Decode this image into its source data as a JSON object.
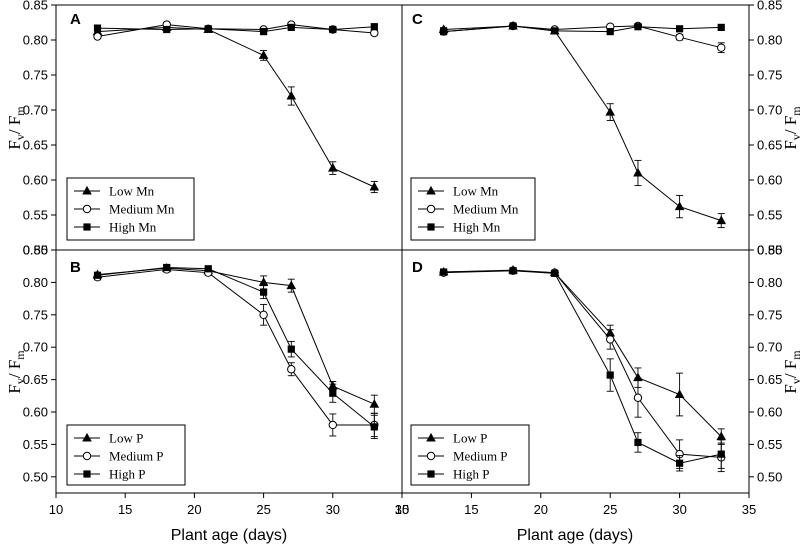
{
  "chart_data": [
    {
      "type": "line",
      "panel": "A",
      "xlabel": "Plant age (days)",
      "ylabel": {
        "main": "F",
        "sub1": "v",
        "mid": "/ F",
        "sub2": "m"
      },
      "xlim": [
        10,
        35
      ],
      "ylim": [
        0.5,
        0.85
      ],
      "x": [
        13,
        18,
        21,
        25,
        27,
        30,
        33
      ],
      "series": [
        {
          "name": "Low Mn",
          "marker": "triangle",
          "values": [
            0.812,
            0.818,
            0.815,
            0.778,
            0.72,
            0.617,
            0.59
          ],
          "err": [
            0.003,
            0.003,
            0.003,
            0.007,
            0.013,
            0.009,
            0.008
          ]
        },
        {
          "name": "Medium Mn",
          "marker": "circle",
          "values": [
            0.805,
            0.822,
            0.816,
            0.815,
            0.822,
            0.815,
            0.81
          ],
          "err": [
            0.003,
            0.003,
            0.003,
            0.003,
            0.003,
            0.003,
            0.003
          ]
        },
        {
          "name": "High Mn",
          "marker": "square",
          "values": [
            0.817,
            0.815,
            0.816,
            0.812,
            0.818,
            0.815,
            0.819
          ],
          "err": [
            0.002,
            0.002,
            0.002,
            0.002,
            0.002,
            0.002,
            0.002
          ]
        }
      ]
    },
    {
      "type": "line",
      "panel": "B",
      "xlabel": "Plant age (days)",
      "ylabel": {
        "main": "F",
        "sub1": "v",
        "mid": "/ F",
        "sub2": "m"
      },
      "xlim": [
        10,
        35
      ],
      "ylim": [
        0.475,
        0.85
      ],
      "x": [
        13,
        18,
        21,
        25,
        27,
        30,
        33
      ],
      "series": [
        {
          "name": "Low P",
          "marker": "triangle",
          "values": [
            0.812,
            0.822,
            0.818,
            0.8,
            0.795,
            0.64,
            0.612
          ],
          "err": [
            0.003,
            0.004,
            0.004,
            0.01,
            0.01,
            0.007,
            0.014
          ]
        },
        {
          "name": "Medium P",
          "marker": "circle",
          "values": [
            0.808,
            0.82,
            0.815,
            0.75,
            0.666,
            0.58,
            0.58
          ],
          "err": [
            0.004,
            0.004,
            0.004,
            0.016,
            0.01,
            0.017,
            0.018
          ]
        },
        {
          "name": "High P",
          "marker": "square",
          "values": [
            0.811,
            0.823,
            0.821,
            0.785,
            0.697,
            0.629,
            0.577
          ],
          "err": [
            0.003,
            0.003,
            0.003,
            0.01,
            0.012,
            0.014,
            0.018
          ]
        }
      ]
    },
    {
      "type": "line",
      "panel": "C",
      "xlabel": "",
      "ylabel": {
        "main": "F",
        "sub1": "v",
        "mid": "/ F",
        "sub2": "m"
      },
      "xlim": [
        10,
        35
      ],
      "ylim": [
        0.5,
        0.85
      ],
      "x": [
        13,
        18,
        21,
        25,
        27,
        30,
        33
      ],
      "series": [
        {
          "name": "Low Mn",
          "marker": "triangle",
          "values": [
            0.815,
            0.82,
            0.813,
            0.697,
            0.61,
            0.562,
            0.542
          ],
          "err": [
            0.003,
            0.003,
            0.003,
            0.012,
            0.018,
            0.016,
            0.01
          ]
        },
        {
          "name": "Medium Mn",
          "marker": "circle",
          "values": [
            0.812,
            0.82,
            0.815,
            0.819,
            0.82,
            0.804,
            0.789
          ],
          "err": [
            0.003,
            0.003,
            0.003,
            0.003,
            0.003,
            0.004,
            0.007
          ]
        },
        {
          "name": "High Mn",
          "marker": "square",
          "values": [
            0.812,
            0.82,
            0.813,
            0.812,
            0.819,
            0.816,
            0.818
          ],
          "err": [
            0.002,
            0.002,
            0.002,
            0.002,
            0.002,
            0.002,
            0.002
          ]
        }
      ]
    },
    {
      "type": "line",
      "panel": "D",
      "xlabel": "Plant age (days)",
      "ylabel": {
        "main": "F",
        "sub1": "v",
        "mid": "/ F",
        "sub2": "m"
      },
      "xlim": [
        10,
        35
      ],
      "ylim": [
        0.475,
        0.85
      ],
      "x": [
        13,
        18,
        21,
        25,
        27,
        30,
        33
      ],
      "series": [
        {
          "name": "Low P",
          "marker": "triangle",
          "values": [
            0.816,
            0.819,
            0.815,
            0.722,
            0.653,
            0.627,
            0.562
          ],
          "err": [
            0.003,
            0.003,
            0.003,
            0.012,
            0.015,
            0.033,
            0.012
          ]
        },
        {
          "name": "Medium P",
          "marker": "circle",
          "values": [
            0.815,
            0.818,
            0.815,
            0.712,
            0.622,
            0.535,
            0.53
          ],
          "err": [
            0.003,
            0.003,
            0.003,
            0.015,
            0.03,
            0.022,
            0.022
          ]
        },
        {
          "name": "High P",
          "marker": "square",
          "values": [
            0.816,
            0.818,
            0.814,
            0.657,
            0.553,
            0.521,
            0.535
          ],
          "err": [
            0.003,
            0.003,
            0.003,
            0.025,
            0.015,
            0.012,
            0.022
          ]
        }
      ]
    }
  ],
  "axes": {
    "x_ticks": [
      "10",
      "15",
      "20",
      "25",
      "30",
      "35"
    ],
    "y_ticks": [
      "0.50",
      "0.55",
      "0.60",
      "0.65",
      "0.70",
      "0.75",
      "0.80",
      "0.85"
    ]
  }
}
